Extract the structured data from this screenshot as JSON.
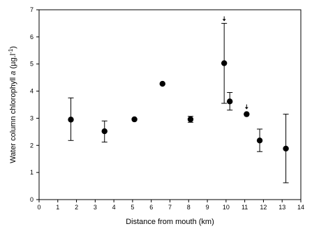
{
  "chart_data": {
    "type": "scatter",
    "xlabel": "Distance from mouth (km)",
    "ylabel_parts": [
      "Water column chlorophyll ",
      "a",
      " (µg.l",
      "-1",
      ")"
    ],
    "xlim": [
      0,
      14
    ],
    "ylim": [
      0,
      7
    ],
    "xticks": [
      "0",
      "1",
      "2",
      "3",
      "4",
      "5",
      "6",
      "7",
      "8",
      "9",
      "10",
      "11",
      "12",
      "13",
      "14"
    ],
    "yticks": [
      "0",
      "1",
      "2",
      "3",
      "4",
      "5",
      "6",
      "7"
    ],
    "grid": false,
    "points": [
      {
        "x": 1.7,
        "y": 2.95,
        "err_low": 2.18,
        "err_high": 3.75
      },
      {
        "x": 3.5,
        "y": 2.52,
        "err_low": 2.12,
        "err_high": 2.9
      },
      {
        "x": 5.1,
        "y": 2.96
      },
      {
        "x": 6.6,
        "y": 4.27
      },
      {
        "x": 8.1,
        "y": 2.96,
        "err_low": 2.85,
        "err_high": 3.07
      },
      {
        "x": 9.9,
        "y": 5.03,
        "err_low": 3.55,
        "err_high": 6.5,
        "arrow_above": true
      },
      {
        "x": 10.2,
        "y": 3.62,
        "err_low": 3.3,
        "err_high": 3.95
      },
      {
        "x": 11.1,
        "y": 3.15,
        "arrow_above": true
      },
      {
        "x": 11.8,
        "y": 2.18,
        "err_low": 1.77,
        "err_high": 2.6
      },
      {
        "x": 13.2,
        "y": 1.88,
        "err_low": 0.62,
        "err_high": 3.15
      }
    ]
  }
}
